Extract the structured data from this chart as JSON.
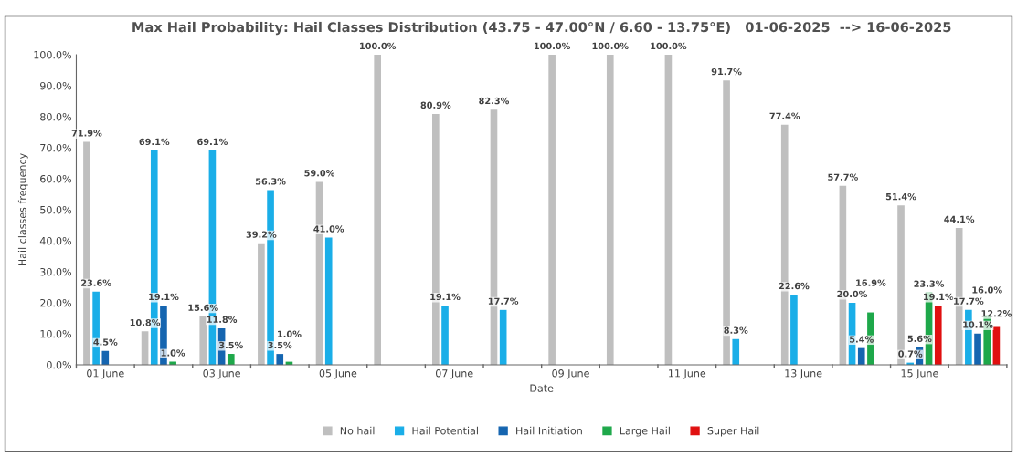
{
  "chart_data": {
    "type": "bar",
    "title": "Max Hail Probability: Hail Classes Distribution (43.75 - 47.00°N / 6.60 - 13.75°E)   01-06-2025  --> 16-06-2025",
    "xlabel": "Date",
    "ylabel": "Hail classes frequency",
    "categories": [
      "01 June",
      null,
      "03 June",
      null,
      "05 June",
      null,
      "07 June",
      null,
      "09 June",
      null,
      "11 June",
      null,
      "13 June",
      null,
      "15 June",
      null
    ],
    "series": [
      {
        "name": "No hail",
        "color": "#bfbfbf",
        "values": [
          71.9,
          10.8,
          15.6,
          39.2,
          59.0,
          100.0,
          80.9,
          82.3,
          100.0,
          100.0,
          100.0,
          91.7,
          77.4,
          57.7,
          51.4,
          44.1
        ],
        "value_labels": [
          "71.9%",
          "10.8%",
          "15.6%",
          "39.2%",
          "59.0%",
          "100.0%",
          "80.9%",
          "82.3%",
          "100.0%",
          "100.0%",
          "100.0%",
          "91.7%",
          "77.4%",
          "57.7%",
          "51.4%",
          "44.1%"
        ]
      },
      {
        "name": "Hail Potential",
        "color": "#1aaee8",
        "values": [
          23.6,
          69.1,
          69.1,
          56.3,
          41.0,
          null,
          19.1,
          17.7,
          null,
          null,
          null,
          8.3,
          22.6,
          20.0,
          0.7,
          17.7
        ],
        "value_labels": [
          "23.6%",
          "69.1%",
          "69.1%",
          "56.3%",
          "41.0%",
          null,
          "19.1%",
          "17.7%",
          null,
          null,
          null,
          "8.3%",
          "22.6%",
          "20.0%",
          "0.7%",
          "17.7%"
        ]
      },
      {
        "name": "Hail Initiation",
        "color": "#1565b0",
        "values": [
          4.5,
          19.1,
          11.8,
          3.5,
          null,
          null,
          null,
          null,
          null,
          null,
          null,
          null,
          null,
          5.4,
          5.6,
          10.1
        ],
        "value_labels": [
          "4.5%",
          "19.1%",
          "11.8%",
          "3.5%",
          null,
          null,
          null,
          null,
          null,
          null,
          null,
          null,
          null,
          "5.4%",
          "5.6%",
          "10.1%"
        ]
      },
      {
        "name": "Large Hail",
        "color": "#1ea84a",
        "values": [
          null,
          1.0,
          3.5,
          1.0,
          null,
          null,
          null,
          null,
          null,
          null,
          null,
          null,
          null,
          16.9,
          23.3,
          16.0
        ],
        "value_labels": [
          null,
          "1.0%",
          "3.5%",
          "1.0%",
          null,
          null,
          null,
          null,
          null,
          null,
          null,
          null,
          null,
          "16.9%",
          "23.3%",
          "16.0%"
        ]
      },
      {
        "name": "Super Hail",
        "color": "#e01010",
        "values": [
          null,
          null,
          null,
          null,
          null,
          null,
          null,
          null,
          null,
          null,
          null,
          null,
          null,
          null,
          19.1,
          12.2
        ],
        "value_labels": [
          null,
          null,
          null,
          null,
          null,
          null,
          null,
          null,
          null,
          null,
          null,
          null,
          null,
          null,
          "19.1%",
          "12.2%"
        ]
      }
    ],
    "ylim": [
      0,
      100
    ],
    "yticks": [
      {
        "value": 0,
        "label": "0.0%"
      },
      {
        "value": 10,
        "label": "10.0%"
      },
      {
        "value": 20,
        "label": "20.0%"
      },
      {
        "value": 30,
        "label": "30.0%"
      },
      {
        "value": 40,
        "label": "40.0%"
      },
      {
        "value": 50,
        "label": "50.0%"
      },
      {
        "value": 60,
        "label": "60.0%"
      },
      {
        "value": 70,
        "label": "70.0%"
      },
      {
        "value": 80,
        "label": "80.0%"
      },
      {
        "value": 90,
        "label": "90.0%"
      },
      {
        "value": 100,
        "label": "100.0%"
      }
    ],
    "grid": false,
    "legend": "bottom"
  }
}
